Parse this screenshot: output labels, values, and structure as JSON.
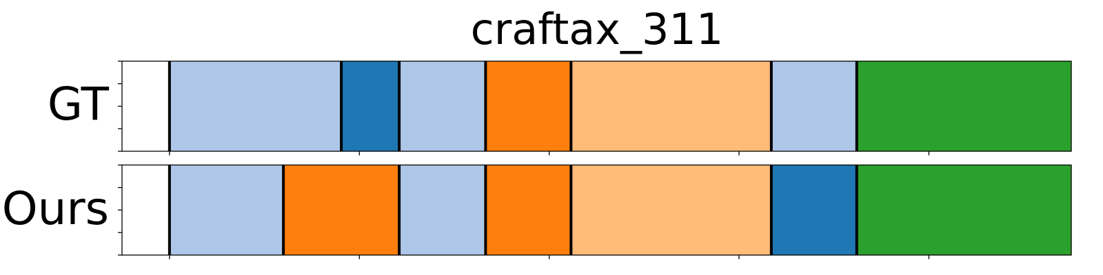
{
  "chart_data": {
    "type": "segmentation-timeline",
    "title": "craftax_311",
    "xlim": [
      0,
      100
    ],
    "palette": {
      "light-blue": "#aec7e8",
      "dark-blue": "#1f77b4",
      "orange": "#ff7f0e",
      "light-orange": "#ffbb78",
      "green": "#2ca02c"
    },
    "rows": [
      {
        "label": "GT",
        "segments": [
          {
            "start": 5.0,
            "end": 23.1,
            "color": "light-blue"
          },
          {
            "start": 23.1,
            "end": 29.2,
            "color": "dark-blue"
          },
          {
            "start": 29.2,
            "end": 38.3,
            "color": "light-blue"
          },
          {
            "start": 38.3,
            "end": 47.3,
            "color": "orange"
          },
          {
            "start": 47.3,
            "end": 68.4,
            "color": "light-orange"
          },
          {
            "start": 68.4,
            "end": 77.4,
            "color": "light-blue"
          },
          {
            "start": 77.4,
            "end": 104.5,
            "color": "green"
          }
        ]
      },
      {
        "label": "Ours",
        "segments": [
          {
            "start": 5.0,
            "end": 17.0,
            "color": "light-blue"
          },
          {
            "start": 17.0,
            "end": 29.2,
            "color": "orange"
          },
          {
            "start": 29.2,
            "end": 38.3,
            "color": "light-blue"
          },
          {
            "start": 38.3,
            "end": 47.3,
            "color": "orange"
          },
          {
            "start": 47.3,
            "end": 68.4,
            "color": "light-orange"
          },
          {
            "start": 68.4,
            "end": 77.4,
            "color": "dark-blue"
          },
          {
            "start": 77.4,
            "end": 104.5,
            "color": "green"
          }
        ]
      }
    ],
    "x_ticks": [
      5,
      25,
      45,
      65,
      85,
      105
    ],
    "x_tick_labels": [],
    "y_ticks_per_row": 5,
    "grid": false,
    "legend": "none"
  }
}
